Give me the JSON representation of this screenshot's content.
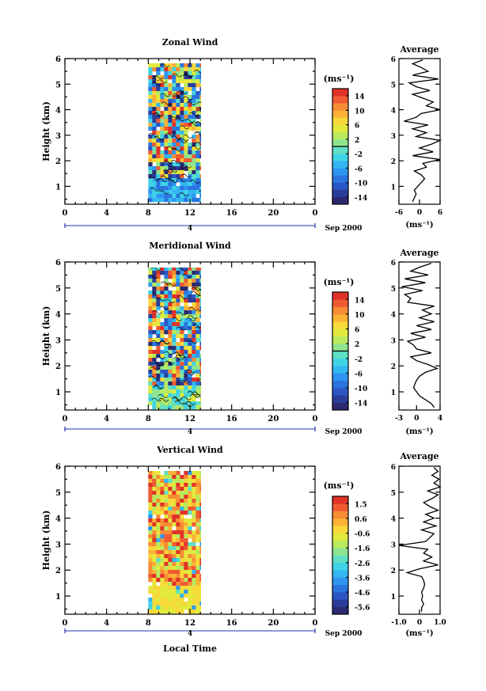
{
  "chart_data": [
    {
      "type": "heatmap",
      "title": "Zonal Wind",
      "ylabel": "Height (km)",
      "xlabel": "",
      "x_ticks": [
        "0",
        "4",
        "8",
        "12",
        "16",
        "20",
        "0"
      ],
      "y_ticks": [
        "1",
        "2",
        "3",
        "4",
        "5",
        "6"
      ],
      "xlim": [
        0,
        24
      ],
      "ylim": [
        0.3,
        6
      ],
      "data_x_range": [
        8,
        13
      ],
      "day_label": "4",
      "date_label": "Sep 2000",
      "colorbar": {
        "unit": "(ms⁻¹)",
        "ticks": [
          "14",
          "10",
          "6",
          "2",
          "-2",
          "-6",
          "-10",
          "-14"
        ],
        "range": [
          -16,
          16
        ],
        "zero_line": 0
      },
      "profile": {
        "title": "Average",
        "xlabel": "(ms⁻¹)",
        "x_ticks": [
          "-6",
          "0",
          "6"
        ],
        "xlim": [
          -6,
          6
        ],
        "heights": [
          0.4,
          0.55,
          0.7,
          0.85,
          1.0,
          1.15,
          1.3,
          1.45,
          1.6,
          1.75,
          1.9,
          2.05,
          2.2,
          2.35,
          2.5,
          2.65,
          2.8,
          2.95,
          3.1,
          3.25,
          3.4,
          3.55,
          3.7,
          3.85,
          4.0,
          4.15,
          4.3,
          4.45,
          4.6,
          4.75,
          4.9,
          5.05,
          5.2,
          5.35,
          5.5,
          5.65,
          5.8,
          5.95
        ],
        "values": [
          -2.0,
          -1.5,
          -1.0,
          -1.5,
          -0.5,
          0.5,
          1.5,
          0.5,
          -1.5,
          2.0,
          1.0,
          6.0,
          -2.0,
          4.0,
          0.0,
          3.5,
          6.0,
          -1.0,
          2.0,
          -2.0,
          2.5,
          -4.5,
          -1.0,
          0.5,
          6.0,
          2.0,
          4.0,
          1.0,
          -2.0,
          3.0,
          -1.0,
          -3.0,
          5.5,
          -2.0,
          2.5,
          0.5,
          -2.0,
          1.0
        ]
      }
    },
    {
      "type": "heatmap",
      "title": "Meridional Wind",
      "ylabel": "Height (km)",
      "xlabel": "",
      "x_ticks": [
        "0",
        "4",
        "8",
        "12",
        "16",
        "20",
        "0"
      ],
      "y_ticks": [
        "1",
        "2",
        "3",
        "4",
        "5",
        "6"
      ],
      "xlim": [
        0,
        24
      ],
      "ylim": [
        0.3,
        6
      ],
      "data_x_range": [
        8,
        13
      ],
      "day_label": "4",
      "date_label": "Sep 2000",
      "colorbar": {
        "unit": "(ms⁻¹)",
        "ticks": [
          "14",
          "10",
          "6",
          "2",
          "-2",
          "-6",
          "-10",
          "-14"
        ],
        "range": [
          -16,
          16
        ],
        "zero_line": 0
      },
      "profile": {
        "title": "Average",
        "xlabel": "(ms⁻¹)",
        "x_ticks": [
          "-3",
          "0",
          "4"
        ],
        "xlim": [
          -3,
          4
        ],
        "heights": [
          0.4,
          0.55,
          0.7,
          0.85,
          1.0,
          1.15,
          1.3,
          1.45,
          1.6,
          1.75,
          1.9,
          2.05,
          2.2,
          2.35,
          2.5,
          2.65,
          2.8,
          2.95,
          3.1,
          3.25,
          3.4,
          3.55,
          3.7,
          3.85,
          4.0,
          4.15,
          4.3,
          4.45,
          4.6,
          4.75,
          4.9,
          5.05,
          5.2,
          5.35,
          5.5,
          5.65,
          5.8,
          5.95
        ],
        "values": [
          3.0,
          2.5,
          1.5,
          0.5,
          0.0,
          -0.5,
          -0.3,
          0.0,
          0.5,
          1.5,
          3.5,
          2.0,
          0.0,
          -1.0,
          2.5,
          0.0,
          -0.5,
          -1.5,
          1.5,
          -1.0,
          2.5,
          0.0,
          3.0,
          0.5,
          2.5,
          1.0,
          3.0,
          -1.5,
          -1.0,
          -2.0,
          1.0,
          -2.5,
          1.5,
          -2.0,
          2.0,
          -1.0,
          0.5,
          2.5
        ]
      }
    },
    {
      "type": "heatmap",
      "title": "Vertical Wind",
      "ylabel": "Height (km)",
      "xlabel": "Local Time",
      "x_ticks": [
        "0",
        "4",
        "8",
        "12",
        "16",
        "20",
        "0"
      ],
      "y_ticks": [
        "1",
        "2",
        "3",
        "4",
        "5",
        "6"
      ],
      "xlim": [
        0,
        24
      ],
      "ylim": [
        0.3,
        6
      ],
      "data_x_range": [
        8,
        13
      ],
      "day_label": "4",
      "date_label": "Sep 2000",
      "colorbar": {
        "unit": "(ms⁻¹)",
        "ticks": [
          "1.5",
          "0.6",
          "-0.6",
          "-1.6",
          "-2.6",
          "-3.6",
          "-4.6",
          "-5.6"
        ],
        "range": [
          -6.1,
          2.0
        ],
        "zero_line": null
      },
      "profile": {
        "title": "Average",
        "xlabel": "(ms⁻¹)",
        "x_ticks": [
          "-1.0",
          "0",
          "1.0"
        ],
        "xlim": [
          -1.0,
          1.0
        ],
        "heights": [
          0.4,
          0.55,
          0.7,
          0.85,
          1.0,
          1.15,
          1.3,
          1.45,
          1.6,
          1.75,
          1.9,
          2.05,
          2.2,
          2.35,
          2.5,
          2.65,
          2.8,
          2.95,
          3.1,
          3.25,
          3.4,
          3.55,
          3.7,
          3.85,
          4.0,
          4.15,
          4.3,
          4.45,
          4.6,
          4.75,
          4.9,
          5.05,
          5.2,
          5.35,
          5.5,
          5.65,
          5.8,
          5.95
        ],
        "values": [
          0.1,
          0.1,
          0.2,
          0.1,
          0.15,
          0.1,
          0.2,
          0.25,
          0.2,
          0.1,
          -0.6,
          0.0,
          0.9,
          0.2,
          0.6,
          0.2,
          0.4,
          -1.0,
          0.3,
          0.5,
          0.7,
          0.1,
          0.8,
          0.2,
          0.7,
          0.3,
          0.9,
          0.5,
          0.2,
          0.6,
          0.9,
          0.4,
          1.0,
          0.7,
          0.95,
          0.6,
          0.9,
          0.7
        ]
      }
    }
  ]
}
